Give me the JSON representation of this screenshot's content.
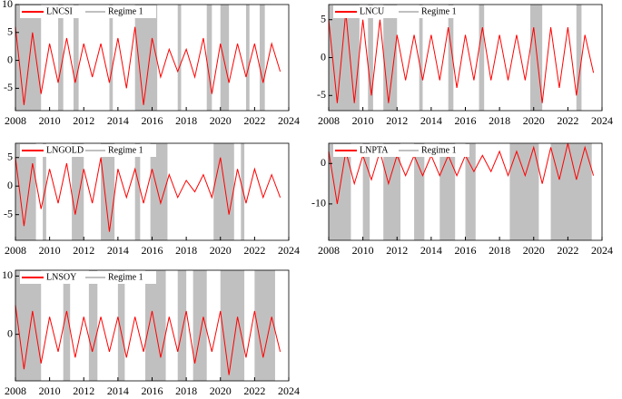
{
  "chart_data": [
    {
      "type": "line",
      "x": [
        2008,
        2008.5,
        2009,
        2009.5,
        2010,
        2010.5,
        2011,
        2011.5,
        2012,
        2012.5,
        2013,
        2013.5,
        2014,
        2014.5,
        2015,
        2015.5,
        2016,
        2016.5,
        2017,
        2017.5,
        2018,
        2018.5,
        2019,
        2019.5,
        2020,
        2020.5,
        2021,
        2021.5,
        2022,
        2022.5,
        2023,
        2023.5
      ],
      "series": [
        {
          "name": "LNCSI",
          "color": "#ff0000",
          "values": [
            6,
            -8,
            5,
            -6,
            3,
            -4,
            4,
            -4,
            3,
            -3,
            3,
            -4,
            4,
            -5,
            6,
            -8,
            4,
            -3,
            2,
            -2,
            2,
            -3,
            4,
            -6,
            3,
            -4,
            3,
            -3,
            3,
            -4,
            3,
            -2
          ]
        }
      ],
      "regime": {
        "name": "Regime 1",
        "color": "#c0c0c0",
        "periods": [
          [
            2008,
            2009.5
          ],
          [
            2010.5,
            2010.8
          ],
          [
            2011.4,
            2011.7
          ],
          [
            2013.5,
            2013.7
          ],
          [
            2015,
            2016.3
          ],
          [
            2017.5,
            2017.7
          ],
          [
            2019.2,
            2019.5
          ],
          [
            2020,
            2020.5
          ],
          [
            2021.5,
            2021.7
          ],
          [
            2022.3,
            2022.6
          ]
        ]
      },
      "xlim": [
        2008,
        2024
      ],
      "xticks": [
        2008,
        2010,
        2012,
        2014,
        2016,
        2018,
        2020,
        2022,
        2024
      ],
      "ylim": [
        -9,
        10
      ],
      "yticks": [
        10,
        5,
        0,
        -5
      ]
    },
    {
      "type": "line",
      "x": [
        2008,
        2008.5,
        2009,
        2009.5,
        2010,
        2010.5,
        2011,
        2011.5,
        2012,
        2012.5,
        2013,
        2013.5,
        2014,
        2014.5,
        2015,
        2015.5,
        2016,
        2016.5,
        2017,
        2017.5,
        2018,
        2018.5,
        2019,
        2019.5,
        2020,
        2020.5,
        2021,
        2021.5,
        2022,
        2022.5,
        2023,
        2023.5
      ],
      "series": [
        {
          "name": "LNCU",
          "color": "#ff0000",
          "values": [
            5,
            -6,
            6,
            -6,
            5,
            -5,
            5,
            -6,
            3,
            -3,
            3,
            -3,
            3,
            -3,
            4,
            -4,
            3,
            -3,
            4,
            -3,
            3,
            -3,
            3,
            -3,
            4,
            -6,
            4,
            -4,
            4,
            -5,
            3,
            -2
          ]
        }
      ],
      "regime": {
        "name": "Regime 1",
        "color": "#c0c0c0",
        "periods": [
          [
            2008,
            2009.8
          ],
          [
            2010.3,
            2010.6
          ],
          [
            2011.2,
            2012
          ],
          [
            2013.3,
            2013.5
          ],
          [
            2015,
            2015.3
          ],
          [
            2016.8,
            2017.1
          ],
          [
            2019.8,
            2020.5
          ],
          [
            2022.5,
            2022.8
          ]
        ]
      },
      "xlim": [
        2008,
        2024
      ],
      "xticks": [
        2008,
        2010,
        2012,
        2014,
        2016,
        2018,
        2020,
        2022,
        2024
      ],
      "ylim": [
        -7,
        7
      ],
      "yticks": [
        5,
        0,
        -5
      ]
    },
    {
      "type": "line",
      "x": [
        2008,
        2008.5,
        2009,
        2009.5,
        2010,
        2010.5,
        2011,
        2011.5,
        2012,
        2012.5,
        2013,
        2013.5,
        2014,
        2014.5,
        2015,
        2015.5,
        2016,
        2016.5,
        2017,
        2017.5,
        2018,
        2018.5,
        2019,
        2019.5,
        2020,
        2020.5,
        2021,
        2021.5,
        2022,
        2022.5,
        2023,
        2023.5
      ],
      "series": [
        {
          "name": "LNGOLD",
          "color": "#ff0000",
          "values": [
            5,
            -7,
            4,
            -4,
            3,
            -3,
            4,
            -5,
            3,
            -3,
            5,
            -8,
            3,
            -2,
            3,
            -3,
            3,
            -3,
            2,
            -2,
            1,
            -1,
            2,
            -2,
            5,
            -5,
            3,
            -3,
            3,
            -2,
            2,
            -2
          ]
        }
      ],
      "regime": {
        "name": "Regime 1",
        "color": "#c0c0c0",
        "periods": [
          [
            2008,
            2009.2
          ],
          [
            2009.6,
            2009.8
          ],
          [
            2011.3,
            2012
          ],
          [
            2013,
            2013.8
          ],
          [
            2015,
            2015.3
          ],
          [
            2015.9,
            2016.9
          ],
          [
            2019.6,
            2020.8
          ],
          [
            2021.2,
            2021.4
          ]
        ]
      },
      "xlim": [
        2008,
        2024
      ],
      "xticks": [
        2008,
        2010,
        2012,
        2014,
        2016,
        2018,
        2020,
        2022,
        2024
      ],
      "ylim": [
        -9.5,
        7.5
      ],
      "yticks": [
        5,
        0,
        -5
      ]
    },
    {
      "type": "line",
      "x": [
        2008,
        2008.5,
        2009,
        2009.5,
        2010,
        2010.5,
        2011,
        2011.5,
        2012,
        2012.5,
        2013,
        2013.5,
        2014,
        2014.5,
        2015,
        2015.5,
        2016,
        2016.5,
        2017,
        2017.5,
        2018,
        2018.5,
        2019,
        2019.5,
        2020,
        2020.5,
        2021,
        2021.5,
        2022,
        2022.5,
        2023,
        2023.5
      ],
      "series": [
        {
          "name": "LNPTA",
          "color": "#ff0000",
          "values": [
            3,
            -10,
            3,
            -5,
            2,
            -4,
            3,
            -5,
            2,
            -3,
            2,
            -3,
            2,
            -3,
            2,
            -3,
            2,
            -2,
            2,
            -2,
            3,
            -3,
            3,
            -3,
            4,
            -5,
            4,
            -4,
            5,
            -4,
            4,
            -3
          ]
        }
      ],
      "regime": {
        "name": "Regime 1",
        "color": "#c0c0c0",
        "periods": [
          [
            2008,
            2009.3
          ],
          [
            2010,
            2010.4
          ],
          [
            2011.2,
            2012.2
          ],
          [
            2013,
            2013.6
          ],
          [
            2014.5,
            2015.4
          ],
          [
            2016,
            2016.6
          ],
          [
            2018.6,
            2020.3
          ],
          [
            2021,
            2023.4
          ]
        ]
      },
      "xlim": [
        2008,
        2024
      ],
      "xticks": [
        2008,
        2010,
        2012,
        2014,
        2016,
        2018,
        2020,
        2022,
        2024
      ],
      "ylim": [
        -19,
        5
      ],
      "yticks": [
        0,
        -10
      ]
    },
    {
      "type": "line",
      "x": [
        2008,
        2008.5,
        2009,
        2009.5,
        2010,
        2010.5,
        2011,
        2011.5,
        2012,
        2012.5,
        2013,
        2013.5,
        2014,
        2014.5,
        2015,
        2015.5,
        2016,
        2016.5,
        2017,
        2017.5,
        2018,
        2018.5,
        2019,
        2019.5,
        2020,
        2020.5,
        2021,
        2021.5,
        2022,
        2022.5,
        2023,
        2023.5
      ],
      "series": [
        {
          "name": "LNSOY",
          "color": "#ff0000",
          "values": [
            5,
            -6,
            4,
            -5,
            3,
            -3,
            4,
            -4,
            3,
            -3,
            3,
            -3,
            3,
            -4,
            3,
            -3,
            4,
            -4,
            3,
            -3,
            4,
            -5,
            3,
            -3,
            4,
            -7,
            3,
            -4,
            4,
            -4,
            3,
            -3
          ]
        }
      ],
      "regime": {
        "name": "Regime 1",
        "color": "#c0c0c0",
        "periods": [
          [
            2008,
            2009.5
          ],
          [
            2010.8,
            2011.2
          ],
          [
            2012.3,
            2012.8
          ],
          [
            2014,
            2014.4
          ],
          [
            2015.6,
            2016.8
          ],
          [
            2017.5,
            2018
          ],
          [
            2018.4,
            2019.2
          ],
          [
            2020,
            2021.4
          ],
          [
            2022,
            2023.2
          ]
        ]
      },
      "xlim": [
        2008,
        2024
      ],
      "xticks": [
        2008,
        2010,
        2012,
        2014,
        2016,
        2018,
        2020,
        2022,
        2024
      ],
      "ylim": [
        -8,
        11
      ],
      "yticks": [
        10,
        0
      ]
    }
  ]
}
